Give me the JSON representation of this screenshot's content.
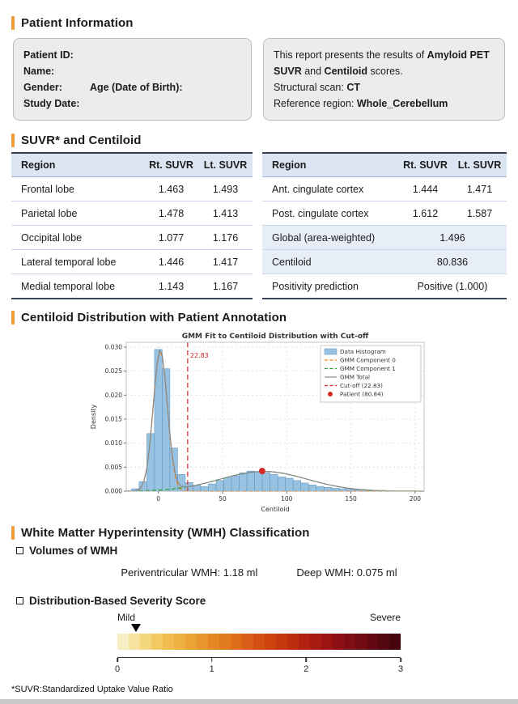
{
  "theme": {
    "accent": "#EE9D3A",
    "box_bg": "#ececec",
    "table_header_bg": "#dce6f3",
    "table_highlight_bg": "#e8eef8"
  },
  "patient_info": {
    "heading": "Patient Information",
    "labels": {
      "patient_id": "Patient ID:",
      "name": "Name:",
      "gender": "Gender:",
      "age": "Age (Date of Birth):",
      "study_date": "Study Date:"
    },
    "report_note": {
      "line1_pre": "This report presents the results of ",
      "bold1": "Amyloid PET SUVR",
      "mid": " and ",
      "bold2": "Centiloid",
      "post": " scores.",
      "structural_label": "Structural scan: ",
      "structural_value": "CT",
      "reference_label": "Reference region: ",
      "reference_value": "Whole_Cerebellum"
    }
  },
  "suvr_section": {
    "heading": "SUVR* and Centiloid",
    "left_table": {
      "headers": [
        "Region",
        "Rt. SUVR",
        "Lt. SUVR"
      ],
      "rows": [
        {
          "cells": [
            "Frontal lobe",
            "1.463",
            "1.493"
          ]
        },
        {
          "cells": [
            "Parietal lobe",
            "1.478",
            "1.413"
          ]
        },
        {
          "cells": [
            "Occipital lobe",
            "1.077",
            "1.176"
          ]
        },
        {
          "cells": [
            "Lateral temporal lobe",
            "1.446",
            "1.417"
          ]
        },
        {
          "cells": [
            "Medial temporal lobe",
            "1.143",
            "1.167"
          ]
        }
      ]
    },
    "right_table": {
      "headers": [
        "Region",
        "Rt. SUVR",
        "Lt. SUVR"
      ],
      "rows": [
        {
          "cells": [
            "Ant. cingulate cortex",
            "1.444",
            "1.471"
          ]
        },
        {
          "cells": [
            "Post. cingulate cortex",
            "1.612",
            "1.587"
          ]
        },
        {
          "cells": [
            "Global (area-weighted)",
            "1.496"
          ],
          "highlight": true
        },
        {
          "cells": [
            "Centiloid",
            "80.836"
          ],
          "highlight": true
        },
        {
          "cells": [
            "Positivity prediction",
            "Positive (1.000)"
          ]
        }
      ]
    }
  },
  "distribution_section": {
    "heading": "Centiloid Distribution with Patient Annotation"
  },
  "chart_data": {
    "type": "histogram_with_gmm",
    "title": "GMM Fit to Centiloid Distribution with Cut-off",
    "xlabel": "Centiloid",
    "ylabel": "Density",
    "xlim": [
      -25,
      207
    ],
    "ylim": [
      0,
      0.031
    ],
    "xticks": [
      0,
      50,
      100,
      150,
      200
    ],
    "yticks": [
      0,
      0.005,
      0.01,
      0.015,
      0.02,
      0.025,
      0.03
    ],
    "grid": true,
    "hist": {
      "bin_start": -21,
      "bin_width": 6,
      "heights": [
        0.0005,
        0.002,
        0.012,
        0.0295,
        0.0255,
        0.009,
        0.0035,
        0.0018,
        0.0012,
        0.001,
        0.0015,
        0.0022,
        0.0028,
        0.0032,
        0.0038,
        0.0042,
        0.004,
        0.0038,
        0.0035,
        0.003,
        0.0027,
        0.0022,
        0.0017,
        0.0013,
        0.001,
        0.0008,
        0.0006,
        0.0005,
        0.0004,
        0.0003,
        0.0003,
        0.0002
      ]
    },
    "components": [
      {
        "name": "GMM Component 0",
        "mu": 1.5,
        "sigma": 5.5,
        "peak": 0.0292,
        "color": "#ff7f0e"
      },
      {
        "name": "GMM Component 1",
        "mu": 82,
        "sigma": 34,
        "peak": 0.0041,
        "color": "#2ca02c"
      }
    ],
    "total": {
      "name": "GMM Total"
    },
    "cutoff": {
      "value": 22.83,
      "annotation": "22.83",
      "label": "Cut-off (22.83)"
    },
    "patient": {
      "value": 80.84,
      "y": 0.0042,
      "label": "Patient (80.84)"
    },
    "legend_position": "upper right",
    "legend": [
      {
        "label": "Data Histogram",
        "type": "patch",
        "color": "#85b7dc"
      },
      {
        "label": "GMM Component 0",
        "type": "dashed",
        "color": "#ff7f0e"
      },
      {
        "label": "GMM Component 1",
        "type": "dashed",
        "color": "#2ca02c"
      },
      {
        "label": "GMM Total",
        "type": "line",
        "color": "#888888"
      },
      {
        "label": "Cut-off (22.83)",
        "type": "dashed",
        "color": "#d62728"
      },
      {
        "label": "Patient (80.84)",
        "type": "dot",
        "color": "#d62728"
      }
    ],
    "colors": {
      "hist": "#85b7dc",
      "hist_edge": "#5b93c4",
      "total": "#888888",
      "cutoff": "#d62728",
      "patient": "#d62728"
    }
  },
  "wmh_section": {
    "heading": "White Matter Hyperintensity (WMH) Classification",
    "volumes_subheading": "Volumes of WMH",
    "periventricular": "Periventricular WMH: 1.18 ml",
    "deep": "Deep WMH: 0.075 ml",
    "severity_subheading": "Distribution-Based Severity Score",
    "severity": {
      "left_label": "Mild",
      "right_label": "Severe",
      "marker_value": 0.2,
      "scale_min": 0,
      "scale_max": 3,
      "ticks": [
        "0",
        "1",
        "2",
        "3"
      ],
      "colors": [
        "#F8EEC3",
        "#F6E39E",
        "#F4D77E",
        "#F2CA62",
        "#F0BD4E",
        "#EEB041",
        "#ECA336",
        "#E9952D",
        "#E68726",
        "#E27A20",
        "#DE6C1B",
        "#D95E17",
        "#D35013",
        "#CD4310",
        "#C5370E",
        "#BC2C0E",
        "#B22210",
        "#A71A12",
        "#9B1313",
        "#8E0F15",
        "#800C15",
        "#720A14",
        "#630812",
        "#54060F",
        "#45040B"
      ]
    }
  },
  "footnote": "*SUVR:Standardized Uptake Value Ratio"
}
